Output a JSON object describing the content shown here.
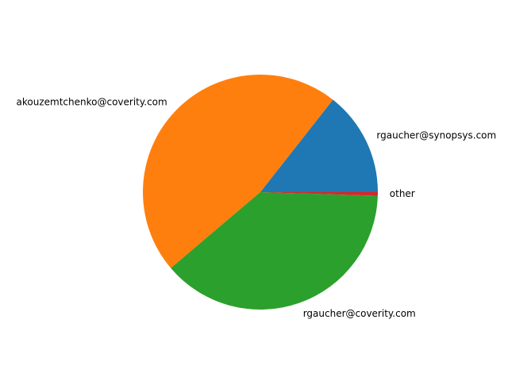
{
  "chart_data": {
    "type": "pie",
    "start_angle_deg": 0,
    "direction": "counterclockwise",
    "legend": "none",
    "slices": [
      {
        "label": "rgaucher@synopsys.com",
        "value": 14.4,
        "color": "#1f77b4"
      },
      {
        "label": "akouzemtchenko@coverity.com",
        "value": 46.8,
        "color": "#ff7f0e"
      },
      {
        "label": "rgaucher@coverity.com",
        "value": 38.3,
        "color": "#2ca02c"
      },
      {
        "label": "other",
        "value": 0.5,
        "color": "#d62728"
      }
    ]
  }
}
